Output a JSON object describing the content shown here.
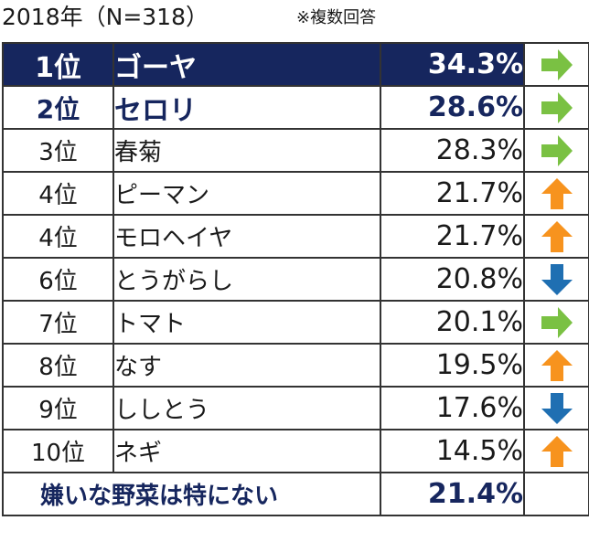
{
  "header": {
    "title": "2018年（N=318）",
    "note": "※複数回答"
  },
  "colors": {
    "navy": "#16265e",
    "up": "#f7931e",
    "down": "#1f6fb2",
    "same": "#7ac143"
  },
  "chart_data": {
    "type": "table",
    "columns": [
      "rank",
      "item",
      "percent",
      "trend"
    ],
    "rows": [
      {
        "rank": "1位",
        "name": "ゴーヤ",
        "pct": "34.3%",
        "value": 34.3,
        "trend": "same"
      },
      {
        "rank": "2位",
        "name": "セロリ",
        "pct": "28.6%",
        "value": 28.6,
        "trend": "same"
      },
      {
        "rank": "3位",
        "name": "春菊",
        "pct": "28.3%",
        "value": 28.3,
        "trend": "same"
      },
      {
        "rank": "4位",
        "name": "ピーマン",
        "pct": "21.7%",
        "value": 21.7,
        "trend": "up"
      },
      {
        "rank": "4位",
        "name": "モロヘイヤ",
        "pct": "21.7%",
        "value": 21.7,
        "trend": "up"
      },
      {
        "rank": "6位",
        "name": "とうがらし",
        "pct": "20.8%",
        "value": 20.8,
        "trend": "down"
      },
      {
        "rank": "7位",
        "name": "トマト",
        "pct": "20.1%",
        "value": 20.1,
        "trend": "same"
      },
      {
        "rank": "8位",
        "name": "なす",
        "pct": "19.5%",
        "value": 19.5,
        "trend": "up"
      },
      {
        "rank": "9位",
        "name": "ししとう",
        "pct": "17.6%",
        "value": 17.6,
        "trend": "down"
      },
      {
        "rank": "10位",
        "name": "ネギ",
        "pct": "14.5%",
        "value": 14.5,
        "trend": "up"
      }
    ],
    "footer": {
      "label": "嫌いな野菜は特にない",
      "pct": "21.4%",
      "value": 21.4
    }
  }
}
